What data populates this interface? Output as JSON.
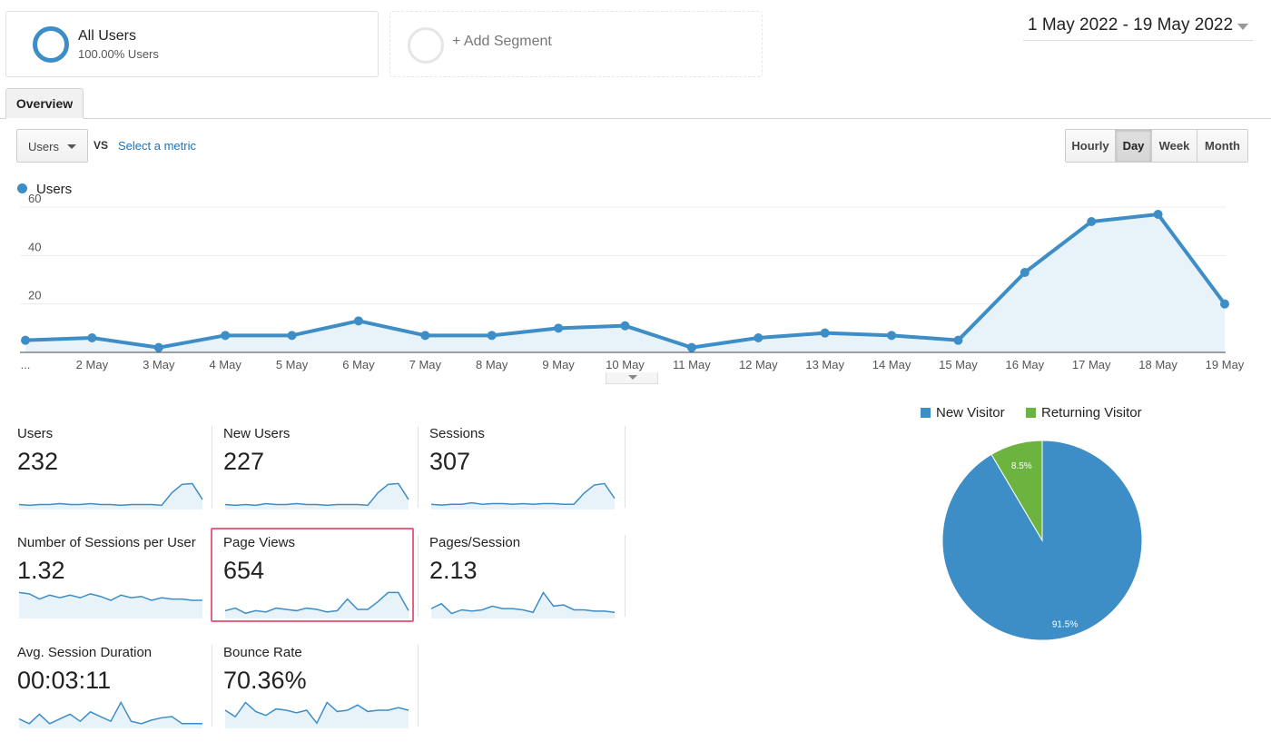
{
  "segments": {
    "all_users": {
      "title": "All Users",
      "subtitle": "100.00% Users"
    },
    "add_segment": {
      "label": "+ Add Segment"
    }
  },
  "date_range": "1 May 2022 - 19 May 2022",
  "tabs": [
    {
      "label": "Overview"
    }
  ],
  "controls": {
    "metric": "Users",
    "vs": "VS",
    "select_metric": "Select a metric",
    "granularity": [
      "Hourly",
      "Day",
      "Week",
      "Month"
    ],
    "granularity_selected": "Day"
  },
  "colors": {
    "primary": "#3d8dc7",
    "secondary": "#6db33f",
    "highlight": "#e5637f"
  },
  "chart_data": {
    "type": "area",
    "legend": "Users",
    "categories": [
      "...",
      "2 May",
      "3 May",
      "4 May",
      "5 May",
      "6 May",
      "7 May",
      "8 May",
      "9 May",
      "10 May",
      "11 May",
      "12 May",
      "13 May",
      "14 May",
      "15 May",
      "16 May",
      "17 May",
      "18 May",
      "19 May"
    ],
    "values": [
      5,
      6,
      2,
      7,
      7,
      13,
      7,
      7,
      10,
      11,
      2,
      6,
      8,
      7,
      5,
      33,
      54,
      57,
      20
    ],
    "yticks": [
      20,
      40,
      60
    ],
    "ylim": [
      0,
      60
    ],
    "grid": true
  },
  "metrics": [
    {
      "label": "Users",
      "value": "232",
      "spark": [
        6,
        5,
        6,
        6,
        7,
        6,
        6,
        7,
        6,
        6,
        5,
        6,
        6,
        6,
        5,
        20,
        30,
        31,
        12
      ]
    },
    {
      "label": "New Users",
      "value": "227",
      "spark": [
        6,
        5,
        6,
        5,
        7,
        6,
        6,
        7,
        6,
        6,
        5,
        6,
        6,
        6,
        5,
        20,
        30,
        31,
        12
      ]
    },
    {
      "label": "Sessions",
      "value": "307",
      "spark": [
        7,
        6,
        7,
        7,
        9,
        7,
        8,
        8,
        7,
        8,
        7,
        8,
        8,
        7,
        7,
        22,
        33,
        35,
        15
      ]
    },
    {
      "label": "Number of Sessions per User",
      "value": "1.32",
      "spark": [
        20,
        19,
        15,
        18,
        16,
        18,
        16,
        19,
        17,
        14,
        18,
        16,
        17,
        14,
        16,
        15,
        15,
        14,
        14
      ]
    },
    {
      "label": "Page Views",
      "value": "654",
      "spark": [
        6,
        8,
        4,
        6,
        5,
        8,
        7,
        6,
        8,
        7,
        5,
        6,
        15,
        7,
        7,
        13,
        20,
        20,
        6
      ]
    },
    {
      "label": "Pages/Session",
      "value": "2.13",
      "spark": [
        8,
        12,
        4,
        7,
        6,
        7,
        10,
        8,
        8,
        7,
        5,
        21,
        10,
        11,
        7,
        7,
        6,
        6,
        5
      ]
    },
    {
      "label": "Avg. Session Duration",
      "value": "00:03:11",
      "spark": [
        8,
        4,
        12,
        4,
        8,
        12,
        6,
        14,
        10,
        6,
        22,
        6,
        4,
        7,
        9,
        10,
        4,
        4,
        4
      ]
    },
    {
      "label": "Bounce Rate",
      "value": "70.36%",
      "spark": [
        14,
        9,
        20,
        13,
        10,
        15,
        14,
        12,
        14,
        4,
        20,
        13,
        14,
        18,
        13,
        14,
        14,
        16,
        14
      ]
    }
  ],
  "pie": {
    "legend": [
      "New Visitor",
      "Returning Visitor"
    ],
    "values": [
      91.5,
      8.5
    ],
    "labels": [
      "91.5%",
      "8.5%"
    ]
  }
}
